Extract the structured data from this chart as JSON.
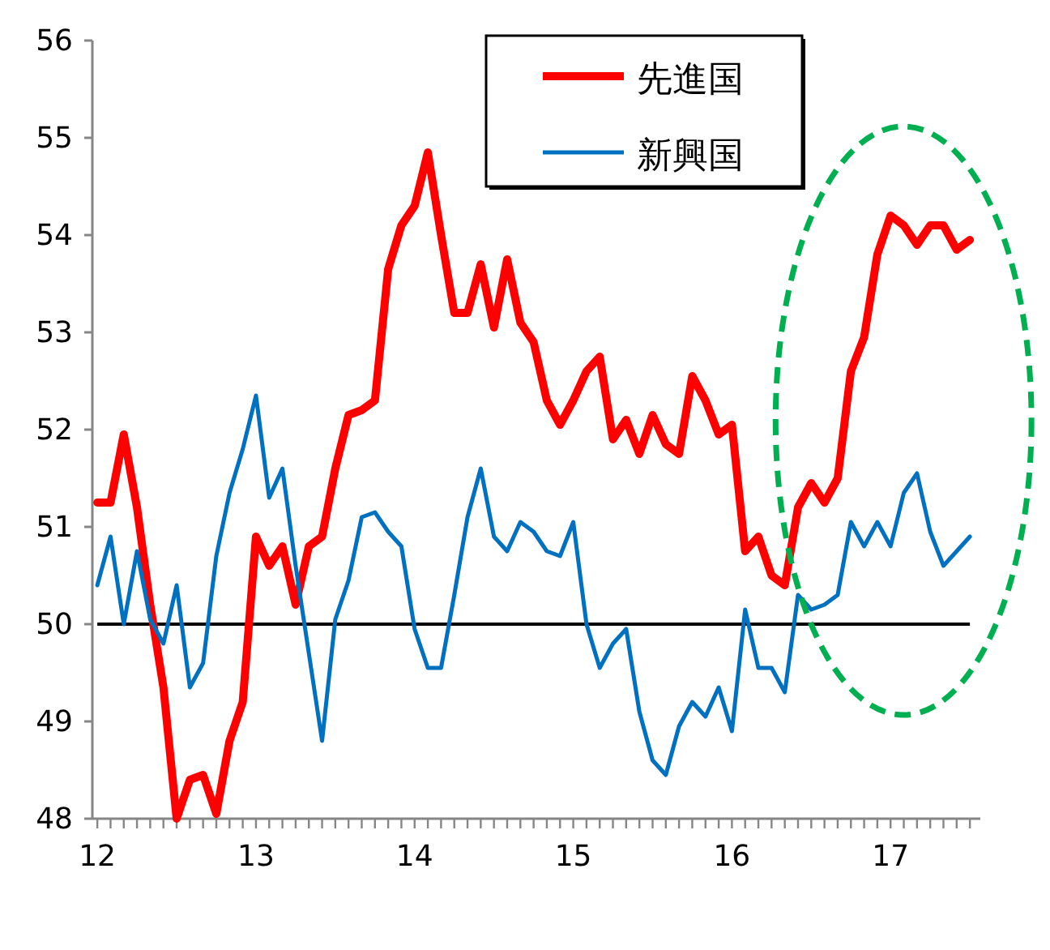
{
  "chart_data": {
    "type": "line",
    "xlim": [
      "2011-12-20",
      "2017-07-25"
    ],
    "ylim": [
      48,
      56
    ],
    "yticks": [
      48,
      49,
      50,
      51,
      52,
      53,
      54,
      55,
      56
    ],
    "xticks": [
      {
        "value": "2012-01",
        "label": "12"
      },
      {
        "value": "2012-02",
        "label": null
      },
      {
        "value": "2012-03",
        "label": null
      },
      {
        "value": "2012-04",
        "label": null
      },
      {
        "value": "2012-05",
        "label": null
      },
      {
        "value": "2012-06",
        "label": null
      },
      {
        "value": "2012-07",
        "label": null
      },
      {
        "value": "2012-08",
        "label": null
      },
      {
        "value": "2012-09",
        "label": null
      },
      {
        "value": "2012-10",
        "label": null
      },
      {
        "value": "2012-11",
        "label": null
      },
      {
        "value": "2012-12",
        "label": null
      },
      {
        "value": "2013-01",
        "label": "13"
      },
      {
        "value": "2013-02",
        "label": null
      },
      {
        "value": "2013-03",
        "label": null
      },
      {
        "value": "2013-04",
        "label": null
      },
      {
        "value": "2013-05",
        "label": null
      },
      {
        "value": "2013-06",
        "label": null
      },
      {
        "value": "2013-07",
        "label": null
      },
      {
        "value": "2013-08",
        "label": null
      },
      {
        "value": "2013-09",
        "label": null
      },
      {
        "value": "2013-10",
        "label": null
      },
      {
        "value": "2013-11",
        "label": null
      },
      {
        "value": "2013-12",
        "label": null
      },
      {
        "value": "2014-01",
        "label": "14"
      },
      {
        "value": "2014-02",
        "label": null
      },
      {
        "value": "2014-03",
        "label": null
      },
      {
        "value": "2014-04",
        "label": null
      },
      {
        "value": "2014-05",
        "label": null
      },
      {
        "value": "2014-06",
        "label": null
      },
      {
        "value": "2014-07",
        "label": null
      },
      {
        "value": "2014-08",
        "label": null
      },
      {
        "value": "2014-09",
        "label": null
      },
      {
        "value": "2014-10",
        "label": null
      },
      {
        "value": "2014-11",
        "label": null
      },
      {
        "value": "2014-12",
        "label": null
      },
      {
        "value": "2015-01",
        "label": "15"
      },
      {
        "value": "2015-02",
        "label": null
      },
      {
        "value": "2015-03",
        "label": null
      },
      {
        "value": "2015-04",
        "label": null
      },
      {
        "value": "2015-05",
        "label": null
      },
      {
        "value": "2015-06",
        "label": null
      },
      {
        "value": "2015-07",
        "label": null
      },
      {
        "value": "2015-08",
        "label": null
      },
      {
        "value": "2015-09",
        "label": null
      },
      {
        "value": "2015-10",
        "label": null
      },
      {
        "value": "2015-11",
        "label": null
      },
      {
        "value": "2015-12",
        "label": null
      },
      {
        "value": "2016-01",
        "label": "16"
      },
      {
        "value": "2016-02",
        "label": null
      },
      {
        "value": "2016-03",
        "label": null
      },
      {
        "value": "2016-04",
        "label": null
      },
      {
        "value": "2016-05",
        "label": null
      },
      {
        "value": "2016-06",
        "label": null
      },
      {
        "value": "2016-07",
        "label": null
      },
      {
        "value": "2016-08",
        "label": null
      },
      {
        "value": "2016-09",
        "label": null
      },
      {
        "value": "2016-10",
        "label": null
      },
      {
        "value": "2016-11",
        "label": null
      },
      {
        "value": "2016-12",
        "label": null
      },
      {
        "value": "2017-01",
        "label": "17"
      },
      {
        "value": "2017-02",
        "label": null
      },
      {
        "value": "2017-03",
        "label": null
      },
      {
        "value": "2017-04",
        "label": null
      },
      {
        "value": "2017-05",
        "label": null
      },
      {
        "value": "2017-06",
        "label": null
      },
      {
        "value": "2017-07",
        "label": null
      }
    ],
    "x": [
      "2012-01",
      "2012-02",
      "2012-03",
      "2012-04",
      "2012-05",
      "2012-06",
      "2012-07",
      "2012-08",
      "2012-09",
      "2012-10",
      "2012-11",
      "2012-12",
      "2013-01",
      "2013-02",
      "2013-03",
      "2013-04",
      "2013-05",
      "2013-06",
      "2013-07",
      "2013-08",
      "2013-09",
      "2013-10",
      "2013-11",
      "2013-12",
      "2014-01",
      "2014-02",
      "2014-03",
      "2014-04",
      "2014-05",
      "2014-06",
      "2014-07",
      "2014-08",
      "2014-09",
      "2014-10",
      "2014-11",
      "2014-12",
      "2015-01",
      "2015-02",
      "2015-03",
      "2015-04",
      "2015-05",
      "2015-06",
      "2015-07",
      "2015-08",
      "2015-09",
      "2015-10",
      "2015-11",
      "2015-12",
      "2016-01",
      "2016-02",
      "2016-03",
      "2016-04",
      "2016-05",
      "2016-06",
      "2016-07",
      "2016-08",
      "2016-09",
      "2016-10",
      "2016-11",
      "2016-12",
      "2017-01",
      "2017-02",
      "2017-03",
      "2017-04",
      "2017-05",
      "2017-06",
      "2017-07"
    ],
    "series": [
      {
        "name": "先進国",
        "color": "#ff0000",
        "values": [
          51.25,
          51.25,
          51.95,
          51.2,
          50.2,
          49.35,
          48.0,
          48.4,
          48.45,
          48.05,
          48.8,
          49.2,
          50.9,
          50.6,
          50.8,
          50.2,
          50.8,
          50.9,
          51.6,
          52.15,
          52.2,
          52.3,
          53.65,
          54.1,
          54.3,
          54.85,
          54.0,
          53.2,
          53.2,
          53.7,
          53.05,
          53.75,
          53.1,
          52.9,
          52.3,
          52.05,
          52.3,
          52.6,
          52.75,
          51.9,
          52.1,
          51.75,
          52.15,
          51.85,
          51.75,
          52.55,
          52.3,
          51.95,
          52.05,
          50.75,
          50.9,
          50.5,
          50.4,
          51.2,
          51.45,
          51.25,
          51.5,
          52.6,
          52.95,
          53.8,
          54.2,
          54.1,
          53.9,
          54.1,
          54.1,
          53.85,
          53.95
        ]
      },
      {
        "name": "新興国",
        "color": "#0070c0",
        "values": [
          50.4,
          50.9,
          50.0,
          50.75,
          50.05,
          49.8,
          50.4,
          49.35,
          49.6,
          50.7,
          51.35,
          51.8,
          52.35,
          51.3,
          51.6,
          50.6,
          49.7,
          48.8,
          50.05,
          50.45,
          51.1,
          51.15,
          50.95,
          50.8,
          49.95,
          49.55,
          49.55,
          50.3,
          51.1,
          51.6,
          50.9,
          50.75,
          51.05,
          50.95,
          50.75,
          50.7,
          51.05,
          50.0,
          49.55,
          49.8,
          49.95,
          49.1,
          48.6,
          48.45,
          48.95,
          49.2,
          49.05,
          49.35,
          48.9,
          50.15,
          49.55,
          49.55,
          49.3,
          50.3,
          50.15,
          50.2,
          50.3,
          51.05,
          50.8,
          51.05,
          50.8,
          51.35,
          51.55,
          50.95,
          50.6,
          50.75,
          50.9
        ]
      }
    ],
    "ref_lines": [
      {
        "axis": "y",
        "value": 50,
        "color": "#000000"
      }
    ],
    "legend": "top",
    "grid": false
  }
}
